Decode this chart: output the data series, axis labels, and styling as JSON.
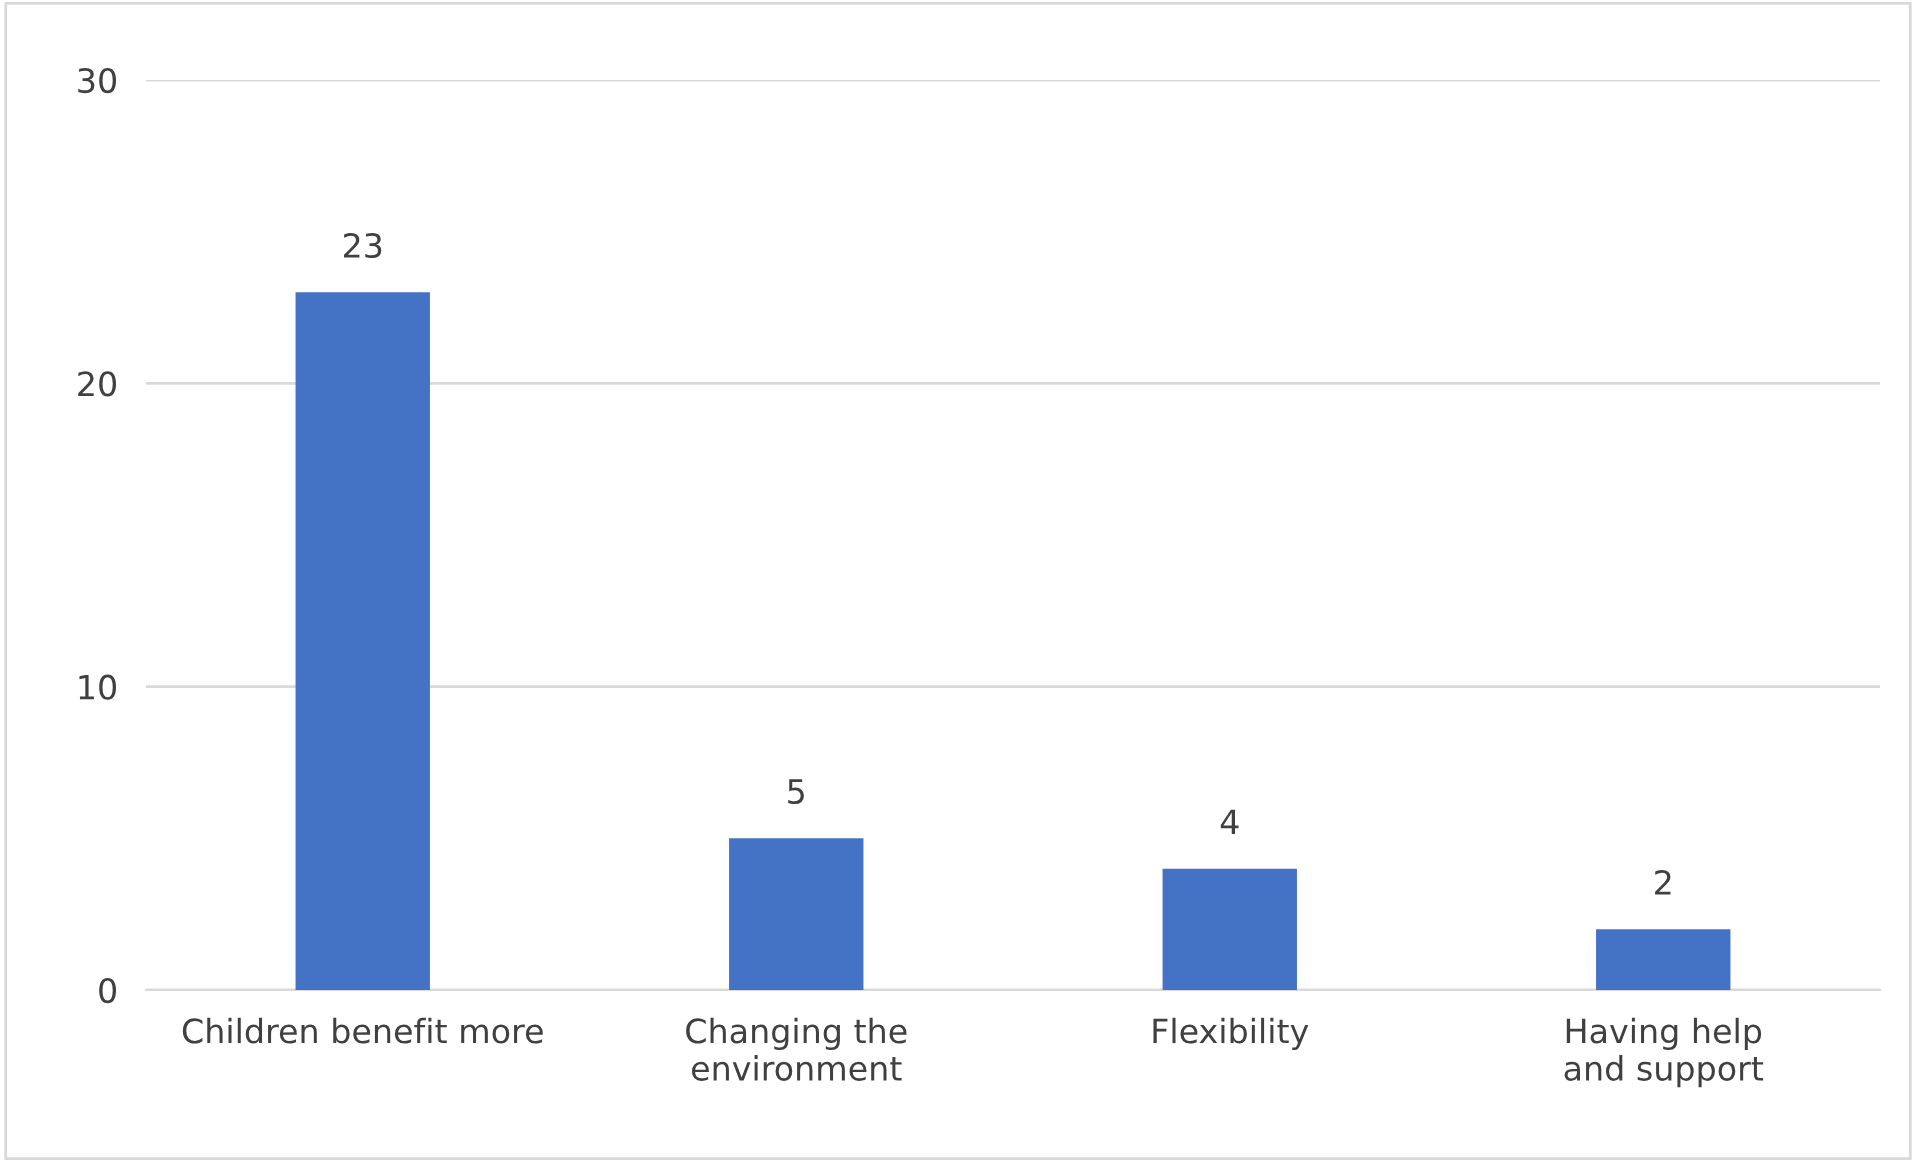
{
  "chart_data": {
    "type": "bar",
    "categories": [
      "Children benefit more",
      "Changing the environment",
      "Flexibility",
      "Having help and support"
    ],
    "values": [
      23,
      5,
      4,
      2
    ],
    "color": "#4472c4",
    "ylim": [
      0,
      30
    ],
    "yticks": [
      0,
      10,
      20,
      30
    ],
    "grid": "y",
    "data_labels": true
  }
}
